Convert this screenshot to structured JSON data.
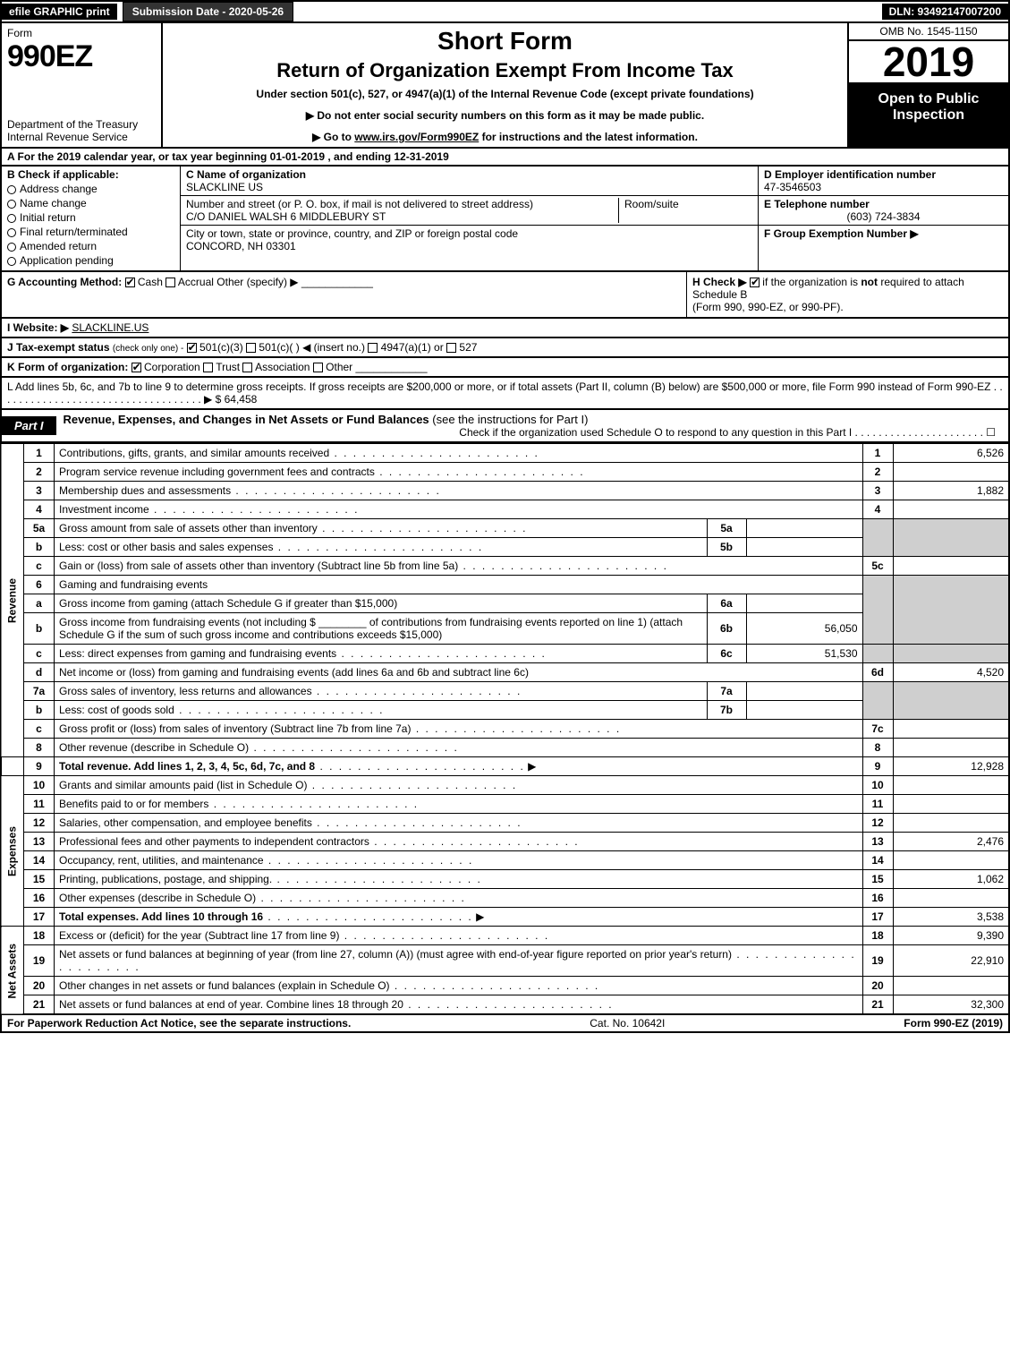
{
  "top": {
    "efile": "efile GRAPHIC print",
    "submission_label": "Submission Date - 2020-05-26",
    "dln": "DLN: 93492147007200"
  },
  "header": {
    "form_word": "Form",
    "form_number": "990EZ",
    "dept": "Department of the Treasury",
    "irs": "Internal Revenue Service",
    "short_form": "Short Form",
    "return_title": "Return of Organization Exempt From Income Tax",
    "under_section": "Under section 501(c), 527, or 4947(a)(1) of the Internal Revenue Code (except private foundations)",
    "arrow_ssn": "▶ Do not enter social security numbers on this form as it may be made public.",
    "arrow_goto_pre": "▶ Go to ",
    "arrow_goto_link": "www.irs.gov/Form990EZ",
    "arrow_goto_post": " for instructions and the latest information.",
    "omb": "OMB No. 1545-1150",
    "year": "2019",
    "open_public": "Open to Public Inspection"
  },
  "period": "A For the 2019 calendar year, or tax year beginning 01-01-2019 , and ending 12-31-2019",
  "box_b": {
    "label": "B  Check if applicable:",
    "items": [
      "Address change",
      "Name change",
      "Initial return",
      "Final return/terminated",
      "Amended return",
      "Application pending"
    ]
  },
  "box_c": {
    "name_label": "C Name of organization",
    "name": "SLACKLINE US",
    "street_label": "Number and street (or P. O. box, if mail is not delivered to street address)",
    "room_label": "Room/suite",
    "street": "C/O DANIEL WALSH 6 MIDDLEBURY ST",
    "city_label": "City or town, state or province, country, and ZIP or foreign postal code",
    "city": "CONCORD, NH  03301"
  },
  "box_d": {
    "ein_label": "D Employer identification number",
    "ein": "47-3546503",
    "phone_label": "E Telephone number",
    "phone": "(603) 724-3834",
    "group_label": "F Group Exemption Number  ▶"
  },
  "g": {
    "label": "G Accounting Method:",
    "cash": "Cash",
    "accrual": "Accrual",
    "other": "Other (specify) ▶"
  },
  "h": {
    "label": "H  Check ▶",
    "text1": "if the organization is ",
    "not": "not",
    "text2": " required to attach Schedule B",
    "text3": "(Form 990, 990-EZ, or 990-PF)."
  },
  "i": {
    "label": "I Website: ▶",
    "value": "SLACKLINE.US"
  },
  "j": {
    "label": "J Tax-exempt status",
    "hint": "(check only one) -",
    "opt1": "501(c)(3)",
    "opt2": "501(c)(  ) ◀ (insert no.)",
    "opt3": "4947(a)(1) or",
    "opt4": "527"
  },
  "k": {
    "label": "K Form of organization:",
    "opts": [
      "Corporation",
      "Trust",
      "Association",
      "Other"
    ]
  },
  "l": {
    "text": "L Add lines 5b, 6c, and 7b to line 9 to determine gross receipts. If gross receipts are $200,000 or more, or if total assets (Part II, column (B) below) are $500,000 or more, file Form 990 instead of Form 990-EZ . . . . . . . . . . . . . . . . . . . . . . . . . . . . . . . . . . . ▶ $ 64,458"
  },
  "part1": {
    "label": "Part I",
    "title": "Revenue, Expenses, and Changes in Net Assets or Fund Balances",
    "title_hint": " (see the instructions for Part I)",
    "check_o": "Check if the organization used Schedule O to respond to any question in this Part I . . . . . . . . . . . . . . . . . . . . . . ☐"
  },
  "sections": {
    "revenue": "Revenue",
    "expenses": "Expenses",
    "netassets": "Net Assets"
  },
  "lines": {
    "1": {
      "desc": "Contributions, gifts, grants, and similar amounts received",
      "val": "6,526"
    },
    "2": {
      "desc": "Program service revenue including government fees and contracts",
      "val": ""
    },
    "3": {
      "desc": "Membership dues and assessments",
      "val": "1,882"
    },
    "4": {
      "desc": "Investment income",
      "val": ""
    },
    "5a": {
      "desc": "Gross amount from sale of assets other than inventory",
      "sub": ""
    },
    "5b": {
      "desc": "Less: cost or other basis and sales expenses",
      "sub": ""
    },
    "5c": {
      "desc": "Gain or (loss) from sale of assets other than inventory (Subtract line 5b from line 5a)",
      "val": ""
    },
    "6": {
      "desc": "Gaming and fundraising events"
    },
    "6a": {
      "desc": "Gross income from gaming (attach Schedule G if greater than $15,000)",
      "sub": ""
    },
    "6b": {
      "desc1": "Gross income from fundraising events (not including $",
      "desc2": " of contributions from fundraising events reported on line 1) (attach Schedule G if the sum of such gross income and contributions exceeds $15,000)",
      "sub": "56,050"
    },
    "6c": {
      "desc": "Less: direct expenses from gaming and fundraising events",
      "sub": "51,530"
    },
    "6d": {
      "desc": "Net income or (loss) from gaming and fundraising events (add lines 6a and 6b and subtract line 6c)",
      "val": "4,520"
    },
    "7a": {
      "desc": "Gross sales of inventory, less returns and allowances",
      "sub": ""
    },
    "7b": {
      "desc": "Less: cost of goods sold",
      "sub": ""
    },
    "7c": {
      "desc": "Gross profit or (loss) from sales of inventory (Subtract line 7b from line 7a)",
      "val": ""
    },
    "8": {
      "desc": "Other revenue (describe in Schedule O)",
      "val": ""
    },
    "9": {
      "desc": "Total revenue. Add lines 1, 2, 3, 4, 5c, 6d, 7c, and 8",
      "arrow": "▶",
      "val": "12,928"
    },
    "10": {
      "desc": "Grants and similar amounts paid (list in Schedule O)",
      "val": ""
    },
    "11": {
      "desc": "Benefits paid to or for members",
      "val": ""
    },
    "12": {
      "desc": "Salaries, other compensation, and employee benefits",
      "val": ""
    },
    "13": {
      "desc": "Professional fees and other payments to independent contractors",
      "val": "2,476"
    },
    "14": {
      "desc": "Occupancy, rent, utilities, and maintenance",
      "val": ""
    },
    "15": {
      "desc": "Printing, publications, postage, and shipping.",
      "val": "1,062"
    },
    "16": {
      "desc": "Other expenses (describe in Schedule O)",
      "val": ""
    },
    "17": {
      "desc": "Total expenses. Add lines 10 through 16",
      "arrow": "▶",
      "val": "3,538"
    },
    "18": {
      "desc": "Excess or (deficit) for the year (Subtract line 17 from line 9)",
      "val": "9,390"
    },
    "19": {
      "desc": "Net assets or fund balances at beginning of year (from line 27, column (A)) (must agree with end-of-year figure reported on prior year's return)",
      "val": "22,910"
    },
    "20": {
      "desc": "Other changes in net assets or fund balances (explain in Schedule O)",
      "val": ""
    },
    "21": {
      "desc": "Net assets or fund balances at end of year. Combine lines 18 through 20",
      "val": "32,300"
    }
  },
  "footer": {
    "left": "For Paperwork Reduction Act Notice, see the separate instructions.",
    "mid": "Cat. No. 10642I",
    "right": "Form 990-EZ (2019)"
  }
}
